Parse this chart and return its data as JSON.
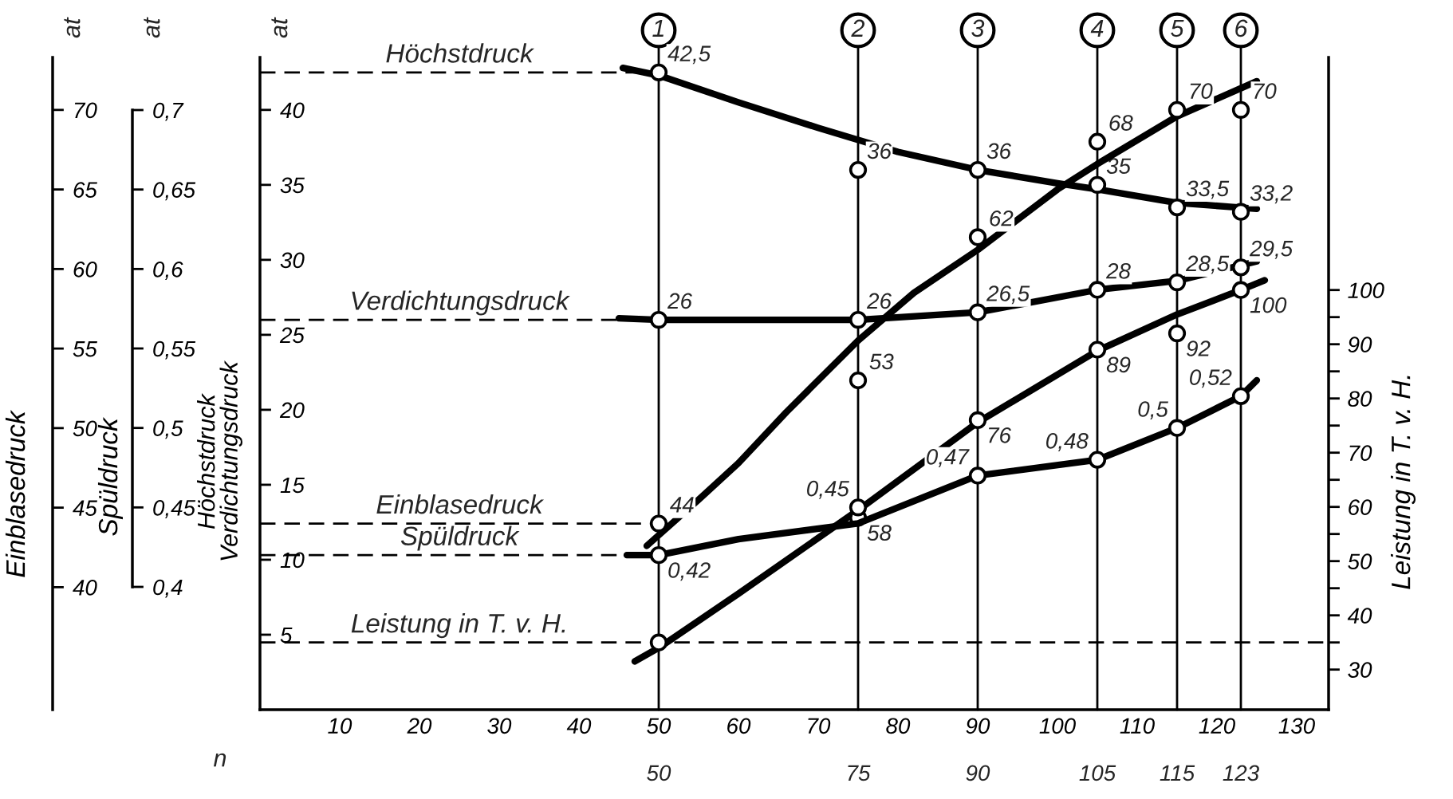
{
  "chart_data": [
    {
      "type": "line",
      "xlabel": "n",
      "ylabel": "Höchstdruck\nVerdichtungsdruck",
      "y2label": "Leistung in T. v. H.",
      "y3label": "Einblasedruck",
      "annotations": [
        "at",
        "at",
        "1",
        "2",
        "3",
        "4",
        "5",
        "6"
      ],
      "xlim": [
        0,
        134
      ],
      "xticks": [
        10,
        20,
        30,
        40,
        50,
        60,
        70,
        80,
        90,
        100,
        110,
        120,
        130
      ],
      "ylim": [
        0,
        43.5
      ],
      "yticks": [
        5,
        10,
        15,
        20,
        25,
        30,
        35,
        40
      ],
      "y2lim": [
        22.6,
        142.9
      ],
      "y2ticks": [
        30,
        {
          "value": 35,
          "label": null
        },
        40,
        {
          "value": 45,
          "label": null
        },
        50,
        {
          "value": 55,
          "label": null
        },
        60,
        {
          "value": 65,
          "label": null
        },
        70,
        {
          "value": 75,
          "label": null
        },
        80,
        {
          "value": 85,
          "label": null
        },
        90,
        {
          "value": 95,
          "label": null
        },
        100
      ],
      "y3lim": [
        32.3,
        73.3
      ],
      "y3ticks": [
        40,
        45,
        50,
        55,
        60,
        65,
        70
      ],
      "series": [
        {
          "type": "line",
          "axis": "y",
          "color": "#000000",
          "x": [
            45.5,
            50,
            60,
            70,
            80,
            90,
            100,
            105,
            115,
            125
          ],
          "values": [
            42.8,
            42.3,
            40.5,
            38.8,
            37.2,
            36,
            35.1,
            34.7,
            33.8,
            33.4
          ]
        },
        {
          "type": "scatter",
          "axis": "y",
          "color": "#000000",
          "marker": "circle",
          "x": [
            50,
            75,
            90,
            105,
            115,
            123
          ],
          "values": [
            42.5,
            36,
            36,
            35,
            33.5,
            33.2
          ],
          "value_labels": [
            "42,5",
            "36",
            "36",
            "35",
            "33,5",
            "33,2"
          ]
        },
        {
          "type": "line",
          "axis": "y",
          "color": "#000000",
          "x": [
            45,
            50,
            60,
            75,
            90,
            105,
            115,
            125
          ],
          "values": [
            26.1,
            26,
            26,
            26,
            26.5,
            28,
            28.6,
            29.9
          ]
        },
        {
          "type": "scatter",
          "axis": "y",
          "color": "#000000",
          "marker": "circle",
          "x": [
            50,
            75,
            90,
            105,
            115,
            123
          ],
          "values": [
            26,
            26,
            26.5,
            28,
            28.5,
            29.5
          ],
          "value_labels": [
            "26",
            "26",
            "26,5",
            "28",
            "28,5",
            "29,5"
          ]
        },
        {
          "type": "line",
          "axis": "y3",
          "color": "#000000",
          "x": [
            48.5,
            55,
            60,
            66,
            75,
            82,
            90,
            100,
            105,
            115,
            125
          ],
          "values": [
            42.6,
            45.5,
            47.8,
            51,
            55.5,
            58.5,
            61.2,
            65,
            66.6,
            69.6,
            71.8
          ]
        },
        {
          "type": "scatter",
          "axis": "y3",
          "color": "#000000",
          "marker": "circle",
          "x": [
            50,
            75,
            90,
            105,
            115,
            123
          ],
          "values": [
            44,
            53,
            62,
            68,
            70,
            70
          ],
          "value_labels": [
            "44",
            "53",
            "62",
            "68",
            "70",
            "70"
          ]
        },
        {
          "type": "line",
          "axis": "y2",
          "color": "#000000",
          "x": [
            47,
            50,
            60,
            75,
            90,
            105,
            115,
            123,
            126
          ],
          "values": [
            31.5,
            34,
            44,
            59.4,
            75.6,
            88.8,
            95.5,
            100,
            101.8
          ]
        },
        {
          "type": "scatter",
          "axis": "y2",
          "color": "#000000",
          "marker": "circle",
          "x": [
            50,
            75,
            90,
            105,
            115,
            123
          ],
          "values": [
            35,
            58,
            76,
            89,
            92,
            100
          ],
          "value_labels": [
            null,
            "58",
            "76",
            "89",
            "92",
            "100"
          ]
        }
      ],
      "ref_lines": [
        {
          "axis": "y",
          "value": 42.5,
          "label": "Höchstdruck",
          "color": "#000000",
          "line_style": "dashed"
        },
        {
          "axis": "y",
          "value": 26,
          "label": "Verdichtungsdruck",
          "color": "#000000",
          "line_style": "dashed"
        },
        {
          "axis": "y3",
          "value": 44,
          "label": "Einblasedruck",
          "color": "#000000",
          "line_style": "dashed"
        },
        {
          "axis": "y2",
          "value": 35,
          "label": "Leistung in T. v. H.",
          "color": "#000000",
          "line_style": "dashed"
        },
        {
          "axis": "x",
          "value": 50,
          "label": "50",
          "color": "#000000",
          "line_style": "solid"
        },
        {
          "axis": "x",
          "value": 75,
          "label": "75",
          "color": "#000000",
          "line_style": "solid"
        },
        {
          "axis": "x",
          "value": 90,
          "label": "90",
          "color": "#000000",
          "line_style": "solid"
        },
        {
          "axis": "x",
          "value": 105,
          "label": "105",
          "color": "#000000",
          "line_style": "solid"
        },
        {
          "axis": "x",
          "value": 115,
          "label": "115",
          "color": "#000000",
          "line_style": "solid"
        },
        {
          "axis": "x",
          "value": 123,
          "label": "123",
          "color": "#000000",
          "line_style": "solid"
        }
      ]
    },
    {
      "type": "line",
      "ylabel": "Spüldruck",
      "annotations": [
        "at"
      ],
      "tick_labels": "y",
      "xlim": [
        0,
        134
      ],
      "ylim": [
        0.4,
        0.7
      ],
      "yticks": [
        {
          "value": 0.4,
          "label": "0,4"
        },
        {
          "value": 0.45,
          "label": "0,45"
        },
        {
          "value": 0.5,
          "label": "0,5"
        },
        {
          "value": 0.55,
          "label": "0,55"
        },
        {
          "value": 0.6,
          "label": "0,6"
        },
        {
          "value": 0.65,
          "label": "0,65"
        },
        {
          "value": 0.7,
          "label": "0,7"
        }
      ],
      "series": [
        {
          "type": "line",
          "color": "#000000",
          "x": [
            46,
            50,
            60,
            75,
            90,
            105,
            115,
            123,
            125
          ],
          "values": [
            0.42,
            0.42,
            0.43,
            0.44,
            0.47,
            0.48,
            0.5,
            0.52,
            0.53
          ]
        },
        {
          "type": "scatter",
          "color": "#000000",
          "marker": "circle",
          "x": [
            50,
            75,
            90,
            105,
            115,
            123
          ],
          "values": [
            0.42,
            0.45,
            0.47,
            0.48,
            0.5,
            0.52
          ],
          "value_labels": [
            "0,42",
            "0,45",
            "0,47",
            "0,48",
            "0,5",
            "0,52"
          ]
        }
      ],
      "ref_lines": [
        {
          "axis": "y",
          "value": 0.42,
          "label": "Spüldruck",
          "color": "#000000",
          "line_style": "dashed"
        }
      ]
    }
  ]
}
